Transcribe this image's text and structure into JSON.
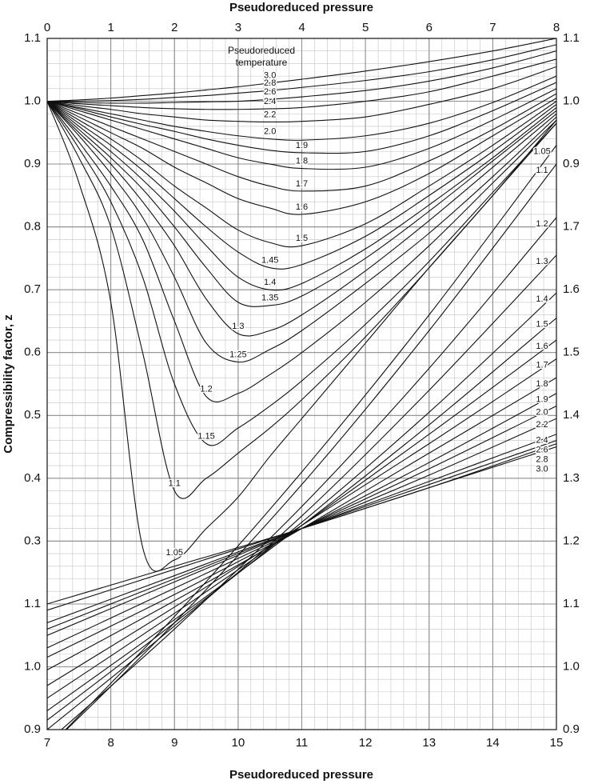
{
  "chart_data": [
    {
      "type": "line",
      "x_label": "Pseudoreduced pressure",
      "xaxis_position": "top",
      "y_label": "Compressibility factor, z",
      "legend_title": "Pseudoreduced temperature",
      "x": [
        0,
        0.5,
        1,
        1.5,
        2,
        2.5,
        3,
        3.5,
        4,
        5,
        6,
        7,
        8
      ],
      "xlim": [
        0,
        8
      ],
      "xticks": [
        0,
        1,
        2,
        3,
        4,
        5,
        6,
        7,
        8
      ],
      "ylim": [
        0,
        1.1
      ],
      "yticks": [
        0.3,
        0.4,
        0.5,
        0.6,
        0.7,
        0.8,
        0.9,
        {
          "value": 1,
          "label": "1.0"
        },
        1.1
      ],
      "y2ticks": [
        0.9,
        {
          "value": 1,
          "label": "1.0"
        },
        1.1
      ],
      "grid": true,
      "color": "#111111",
      "series": [
        {
          "name": "1.05",
          "values": [
            1.0,
            0.87,
            0.68,
            0.29,
            0.27,
            0.32,
            0.37,
            0.435,
            0.495,
            0.615,
            0.735,
            0.85,
            0.97
          ]
        },
        {
          "name": "1.1",
          "values": [
            1.0,
            0.91,
            0.8,
            0.6,
            0.38,
            0.4,
            0.44,
            0.48,
            0.525,
            0.625,
            0.735,
            0.85,
            0.965
          ]
        },
        {
          "name": "1.15",
          "values": [
            1.0,
            0.925,
            0.84,
            0.72,
            0.55,
            0.455,
            0.48,
            0.515,
            0.555,
            0.645,
            0.745,
            0.855,
            0.965
          ]
        },
        {
          "name": "1.2",
          "values": [
            1.0,
            0.935,
            0.865,
            0.78,
            0.65,
            0.53,
            0.535,
            0.565,
            0.6,
            0.68,
            0.77,
            0.87,
            0.97
          ]
        },
        {
          "name": "1.25",
          "values": [
            1.0,
            0.945,
            0.885,
            0.815,
            0.72,
            0.615,
            0.585,
            0.605,
            0.635,
            0.71,
            0.79,
            0.88,
            0.975
          ]
        },
        {
          "name": "1.3",
          "values": [
            1.0,
            0.95,
            0.9,
            0.84,
            0.77,
            0.685,
            0.63,
            0.635,
            0.66,
            0.73,
            0.81,
            0.895,
            0.98
          ]
        },
        {
          "name": "1.35",
          "values": [
            1.0,
            0.955,
            0.91,
            0.86,
            0.8,
            0.735,
            0.68,
            0.675,
            0.69,
            0.75,
            0.825,
            0.905,
            0.985
          ]
        },
        {
          "name": "1.4",
          "values": [
            1.0,
            0.96,
            0.92,
            0.875,
            0.825,
            0.77,
            0.72,
            0.7,
            0.71,
            0.765,
            0.835,
            0.91,
            0.99
          ]
        },
        {
          "name": "1.45",
          "values": [
            1.0,
            0.965,
            0.93,
            0.89,
            0.845,
            0.8,
            0.76,
            0.735,
            0.74,
            0.785,
            0.85,
            0.92,
            0.995
          ]
        },
        {
          "name": "1.5",
          "values": [
            1.0,
            0.97,
            0.94,
            0.905,
            0.865,
            0.83,
            0.795,
            0.775,
            0.77,
            0.805,
            0.865,
            0.93,
            1.0
          ]
        },
        {
          "name": "1.6",
          "values": [
            1.0,
            0.975,
            0.95,
            0.925,
            0.895,
            0.87,
            0.845,
            0.83,
            0.82,
            0.84,
            0.885,
            0.945,
            1.005
          ]
        },
        {
          "name": "1.7",
          "values": [
            1.0,
            0.98,
            0.96,
            0.94,
            0.92,
            0.9,
            0.88,
            0.865,
            0.857,
            0.865,
            0.905,
            0.955,
            1.012
          ]
        },
        {
          "name": "1.8",
          "values": [
            1.0,
            0.985,
            0.97,
            0.955,
            0.94,
            0.925,
            0.91,
            0.9,
            0.893,
            0.895,
            0.925,
            0.97,
            1.02
          ]
        },
        {
          "name": "1.9",
          "values": [
            1.0,
            0.988,
            0.975,
            0.963,
            0.952,
            0.94,
            0.93,
            0.922,
            0.918,
            0.92,
            0.945,
            0.985,
            1.03
          ]
        },
        {
          "name": "2.0",
          "values": [
            1.0,
            0.99,
            0.98,
            0.97,
            0.96,
            0.952,
            0.945,
            0.94,
            0.938,
            0.945,
            0.965,
            0.998,
            1.04
          ]
        },
        {
          "name": "2.2",
          "values": [
            1.0,
            0.993,
            0.987,
            0.98,
            0.975,
            0.97,
            0.968,
            0.967,
            0.968,
            0.975,
            0.995,
            1.02,
            1.055
          ]
        },
        {
          "name": "2.4",
          "values": [
            1.0,
            0.996,
            0.993,
            0.99,
            0.988,
            0.987,
            0.987,
            0.988,
            0.99,
            1.0,
            1.015,
            1.04,
            1.067
          ]
        },
        {
          "name": "2.6",
          "values": [
            1.0,
            0.998,
            0.997,
            0.997,
            0.998,
            0.999,
            1.0,
            1.003,
            1.007,
            1.017,
            1.032,
            1.053,
            1.08
          ]
        },
        {
          "name": "2.8",
          "values": [
            1.0,
            1.0,
            1.001,
            1.003,
            1.006,
            1.009,
            1.013,
            1.017,
            1.022,
            1.033,
            1.047,
            1.066,
            1.09
          ]
        },
        {
          "name": "3.0",
          "values": [
            1.0,
            1.002,
            1.005,
            1.009,
            1.013,
            1.018,
            1.023,
            1.029,
            1.035,
            1.048,
            1.063,
            1.08,
            1.1
          ]
        }
      ]
    },
    {
      "type": "line",
      "x_label": "Pseudoreduced pressure",
      "xaxis_position": "bottom",
      "x": [
        7,
        9,
        11,
        13,
        15
      ],
      "xlim": [
        7,
        15
      ],
      "xticks": [
        7,
        8,
        9,
        10,
        11,
        12,
        13,
        14,
        15
      ],
      "ylim": [
        0.9,
        2.0
      ],
      "yticks": [
        0.9,
        {
          "value": 1,
          "label": "1.0"
        },
        1.1
      ],
      "y2ticks": [
        0.9,
        {
          "value": 1,
          "label": "1.0"
        },
        1.1,
        1.2,
        1.3,
        1.4,
        1.5,
        1.6,
        1.7
      ],
      "grid": true,
      "color": "#111111",
      "series": [
        {
          "name": "1.05",
          "values": [
            0.87,
            1.08,
            1.31,
            1.56,
            1.83
          ]
        },
        {
          "name": "1.1",
          "values": [
            0.87,
            1.07,
            1.29,
            1.535,
            1.8
          ]
        },
        {
          "name": "1.2",
          "values": [
            0.88,
            1.06,
            1.255,
            1.475,
            1.715
          ]
        },
        {
          "name": "1.3",
          "values": [
            0.9,
            1.065,
            1.24,
            1.44,
            1.655
          ]
        },
        {
          "name": "1.4",
          "values": [
            0.915,
            1.07,
            1.23,
            1.405,
            1.595
          ]
        },
        {
          "name": "1.5",
          "values": [
            0.93,
            1.075,
            1.225,
            1.385,
            1.555
          ]
        },
        {
          "name": "1.6",
          "values": [
            0.95,
            1.085,
            1.225,
            1.37,
            1.52
          ]
        },
        {
          "name": "1.7",
          "values": [
            0.97,
            1.095,
            1.225,
            1.355,
            1.49
          ]
        },
        {
          "name": "1.8",
          "values": [
            0.995,
            1.105,
            1.22,
            1.34,
            1.46
          ]
        },
        {
          "name": "1.9",
          "values": [
            1.015,
            1.115,
            1.22,
            1.325,
            1.435
          ]
        },
        {
          "name": "2.0",
          "values": [
            1.03,
            1.125,
            1.22,
            1.315,
            1.415
          ]
        },
        {
          "name": "2.2",
          "values": [
            1.05,
            1.135,
            1.22,
            1.305,
            1.395
          ]
        },
        {
          "name": "2.4",
          "values": [
            1.06,
            1.14,
            1.22,
            1.295,
            1.37
          ]
        },
        {
          "name": "2.6",
          "values": [
            1.07,
            1.145,
            1.22,
            1.29,
            1.36
          ]
        },
        {
          "name": "2.8",
          "values": [
            1.09,
            1.155,
            1.22,
            1.285,
            1.355
          ]
        },
        {
          "name": "3.0",
          "values": [
            1.1,
            1.16,
            1.22,
            1.285,
            1.35
          ]
        }
      ]
    }
  ]
}
